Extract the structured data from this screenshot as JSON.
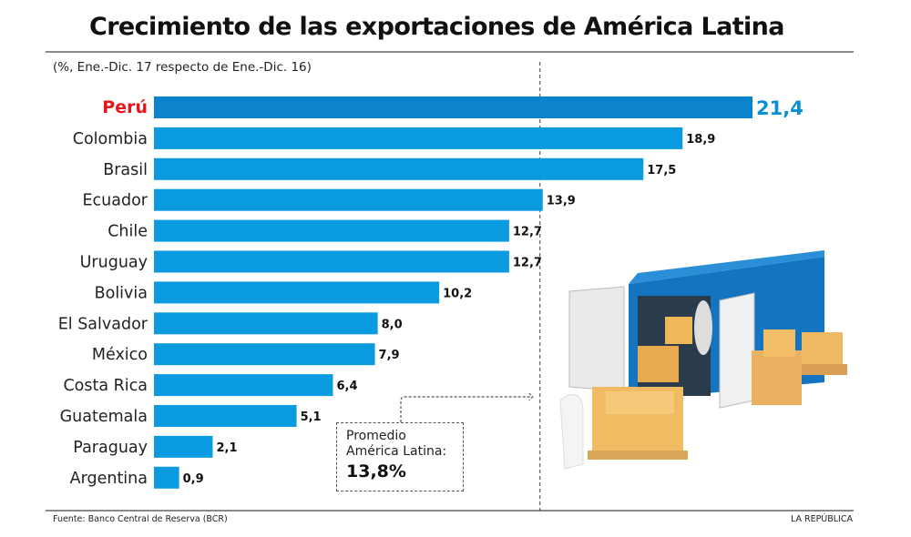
{
  "chart_data": {
    "type": "bar",
    "orientation": "horizontal",
    "title": "Crecimiento de las exportaciones de América Latina",
    "subtitle": "(%, Ene.-Dic. 17 respecto de Ene.-Dic. 16)",
    "categories": [
      "Perú",
      "Colombia",
      "Brasil",
      "Ecuador",
      "Chile",
      "Uruguay",
      "Bolivia",
      "El Salvador",
      "México",
      "Costa Rica",
      "Guatemala",
      "Paraguay",
      "Argentina"
    ],
    "values": [
      21.4,
      18.9,
      17.5,
      13.9,
      12.7,
      12.7,
      10.2,
      8.0,
      7.9,
      6.4,
      5.1,
      2.1,
      0.9
    ],
    "value_labels": [
      "21,4",
      "18,9",
      "17,5",
      "13,9",
      "12,7",
      "12,7",
      "10,2",
      "8,0",
      "7,9",
      "6,4",
      "5,1",
      "2,1",
      "0,9"
    ],
    "highlight": "Perú",
    "xlim": [
      0,
      21.4
    ],
    "grid": false,
    "reference_line": {
      "value": 13.8,
      "label_line1": "Promedio",
      "label_line2": "América Latina:",
      "value_label": "13,8%"
    },
    "colors": {
      "bar": "#0a9ae0",
      "highlight_bar": "#0b84cc",
      "highlight_label": "#e8141b",
      "highlight_value": "#0a8fd6"
    }
  },
  "footer": {
    "source": "Fuente: Banco Central de Reserva (BCR)",
    "brand": "LA REPÚBLICA"
  }
}
